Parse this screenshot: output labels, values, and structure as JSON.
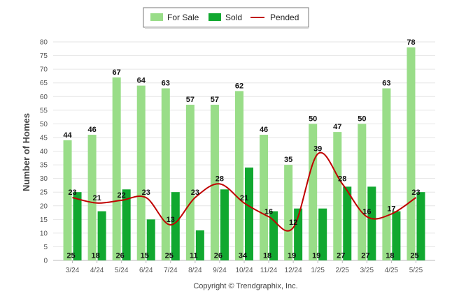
{
  "chart_data": {
    "type": "bar",
    "categories": [
      "3/24",
      "4/24",
      "5/24",
      "6/24",
      "7/24",
      "8/24",
      "9/24",
      "10/24",
      "11/24",
      "12/24",
      "1/25",
      "2/25",
      "3/25",
      "4/25",
      "5/25"
    ],
    "series": [
      {
        "name": "For Sale",
        "kind": "bar",
        "color": "#99dd88",
        "values": [
          44,
          46,
          67,
          64,
          63,
          57,
          57,
          62,
          46,
          35,
          50,
          47,
          50,
          63,
          78
        ]
      },
      {
        "name": "Sold",
        "kind": "bar",
        "color": "#11a830",
        "values": [
          25,
          18,
          26,
          15,
          25,
          11,
          26,
          34,
          18,
          19,
          19,
          27,
          27,
          18,
          25
        ]
      },
      {
        "name": "Pended",
        "kind": "line",
        "color": "#c00000",
        "values": [
          23,
          21,
          22,
          23,
          13,
          23,
          28,
          21,
          16,
          12,
          39,
          28,
          16,
          17,
          23
        ]
      }
    ],
    "ylabel": "Number of Homes",
    "xlabel": "",
    "ylim": [
      0,
      80
    ],
    "yticks": [
      0,
      5,
      10,
      15,
      20,
      25,
      30,
      35,
      40,
      45,
      50,
      55,
      60,
      65,
      70,
      75,
      80
    ],
    "grid": true,
    "legend_position": "top-center",
    "copyright": "Copyright © Trendgraphix, Inc."
  }
}
